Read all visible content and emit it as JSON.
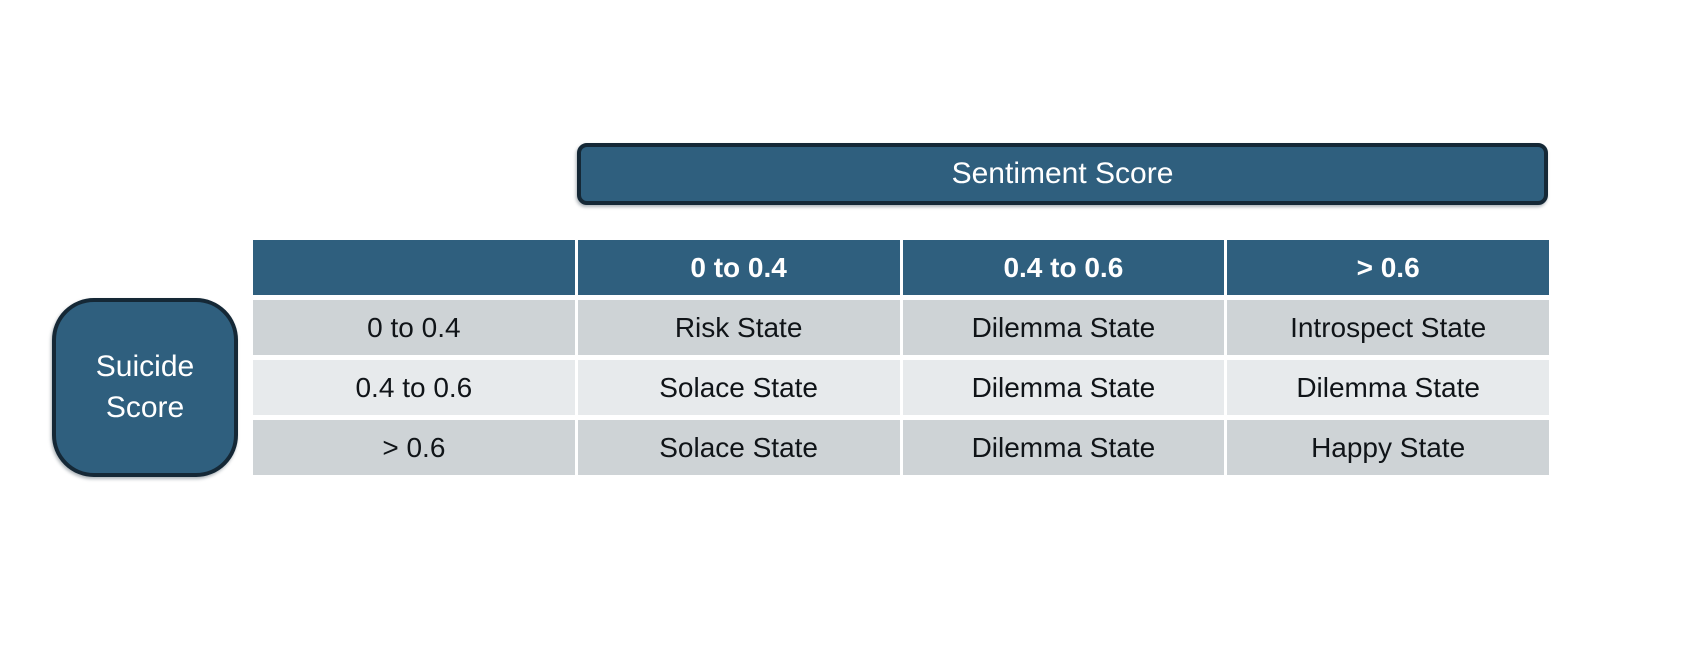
{
  "figure": {
    "type": "state-decision-matrix",
    "column_axis_label": "Sentiment Score",
    "row_axis_label": "Suicide Score"
  },
  "matrix": {
    "corner": "",
    "column_headers": [
      "0 to 0.4",
      "0.4 to 0.6",
      "> 0.6"
    ],
    "row_headers": [
      "0 to 0.4",
      "0.4 to 0.6",
      "> 0.6"
    ],
    "rows": [
      [
        "Risk State",
        "Dilemma State",
        "Introspect State"
      ],
      [
        "Solace State",
        "Dilemma State",
        "Dilemma State"
      ],
      [
        "Solace State",
        "Dilemma State",
        "Happy State"
      ]
    ]
  },
  "colors": {
    "accent_blue": "#2F5F7E",
    "accent_border": "#152836",
    "row_shade_dark": "#CED3D6",
    "row_shade_light": "#E7EAEC",
    "header_text": "#FFFFFF",
    "body_text": "#101418",
    "background": "#FFFFFF"
  }
}
